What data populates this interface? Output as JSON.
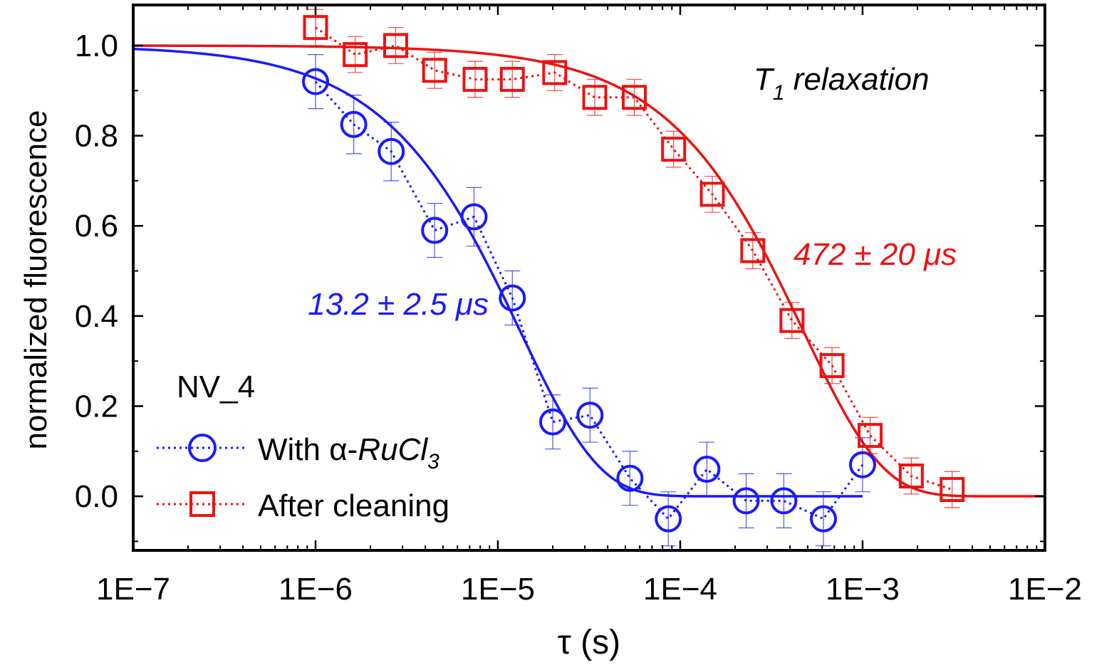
{
  "chart_data": {
    "type": "scatter",
    "xlabel": "τ (s)",
    "ylabel": "normalized fluorescence",
    "xscale": "log",
    "xlim": [
      1e-07,
      0.01
    ],
    "ylim": [
      -0.12,
      1.09
    ],
    "x_ticks": [
      1e-07,
      1e-06,
      1e-05,
      0.0001,
      0.001,
      0.01
    ],
    "x_tick_labels": [
      "1E−7",
      "1E−6",
      "1E−5",
      "1E−4",
      "1E−3",
      "1E−2"
    ],
    "y_ticks": [
      0.0,
      0.2,
      0.4,
      0.6,
      0.8,
      1.0
    ],
    "y_tick_labels": [
      "0.0",
      "0.2",
      "0.4",
      "0.6",
      "0.8",
      "1.0"
    ],
    "grid": false,
    "legend_title": "NV_4",
    "legend_position": "bottom-left",
    "annotations": {
      "panel_label_main": "T",
      "panel_label_sub": "1",
      "panel_label_rest": " relaxation",
      "blue_fit": "13.2 ± 2.5 μs",
      "red_fit": "472 ± 20 μs"
    },
    "series": [
      {
        "legend_prefix": "With α-",
        "legend_italic": "RuCl",
        "legend_sub": "3",
        "color": "#1a1aff",
        "marker": "circle",
        "fit_T1": 1.32e-05,
        "fit_xrange": [
          1e-07,
          0.001
        ],
        "x": [
          1e-06,
          1.62e-06,
          2.6e-06,
          4.5e-06,
          7.4e-06,
          1.2e-05,
          2e-05,
          3.2e-05,
          5.3e-05,
          8.6e-05,
          0.00014,
          0.00023,
          0.00037,
          0.00061,
          0.001
        ],
        "y": [
          0.92,
          0.825,
          0.765,
          0.59,
          0.62,
          0.44,
          0.165,
          0.18,
          0.04,
          -0.05,
          0.06,
          -0.01,
          -0.01,
          -0.05,
          0.07
        ],
        "err": [
          0.06,
          0.065,
          0.065,
          0.06,
          0.065,
          0.06,
          0.06,
          0.06,
          0.06,
          0.06,
          0.06,
          0.06,
          0.06,
          0.06,
          0.06
        ]
      },
      {
        "legend_label": "After cleaning",
        "color": "#ee1111",
        "marker": "square",
        "fit_T1": 0.000472,
        "fit_xrange": [
          1e-07,
          0.01
        ],
        "x": [
          1e-06,
          1.65e-06,
          2.75e-06,
          4.5e-06,
          7.5e-06,
          1.2e-05,
          2.05e-05,
          3.4e-05,
          5.6e-05,
          9.2e-05,
          0.00015,
          0.00025,
          0.00041,
          0.00068,
          0.0011,
          0.00185,
          0.0031
        ],
        "y": [
          1.04,
          0.98,
          1.0,
          0.945,
          0.925,
          0.925,
          0.94,
          0.885,
          0.885,
          0.77,
          0.67,
          0.545,
          0.39,
          0.29,
          0.135,
          0.045,
          0.015
        ],
        "err": [
          0.04,
          0.04,
          0.04,
          0.04,
          0.04,
          0.04,
          0.04,
          0.04,
          0.04,
          0.04,
          0.04,
          0.04,
          0.04,
          0.04,
          0.04,
          0.04,
          0.04
        ]
      }
    ]
  }
}
